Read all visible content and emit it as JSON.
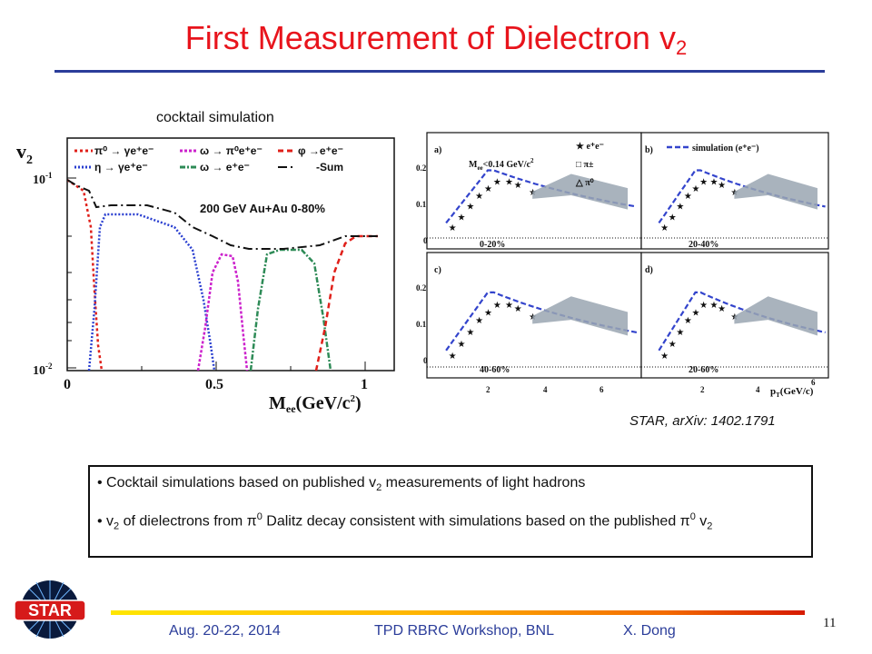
{
  "slide": {
    "title": "First Measurement of Dielectron v",
    "title_sub": "2",
    "cocktail_label": "cocktail simulation",
    "reference": "STAR, arXiv: 1402.1791",
    "bullets": [
      {
        "a": "Cocktail simulations based on published v",
        "sub1": "2",
        "b": " measurements of light hadrons"
      },
      {
        "a": "v",
        "sub1": "2",
        "b": " of dielectrons from ",
        "pi": "π",
        "sup": "0",
        "c": " Dalitz decay consistent with simulations based on the published ",
        "pi2": "π",
        "sup2": "0",
        "d": " v",
        "sub2": "2"
      }
    ],
    "footer": {
      "date": "Aug. 20-22, 2014",
      "event": "TPD RBRC Workshop, BNL",
      "author": "X. Dong",
      "page": "11"
    },
    "logo_text": "STAR"
  },
  "left_plot": {
    "ylabel": "v",
    "ylabel_sub": "2",
    "xlabel": "M",
    "xlabel_sub": "ee",
    "xlabel_rest": "(GeV/c",
    "xlabel_sup": "2",
    "xlabel_end": ")",
    "annotation": "200 GeV Au+Au 0-80%",
    "ytick_hi": "10",
    "ytick_hi_sup": "-1",
    "ytick_lo": "10",
    "ytick_lo_sup": "-2",
    "xticks": [
      "0",
      "0.5",
      "1"
    ],
    "legend": [
      {
        "text": "π⁰ → γe⁺e⁻",
        "color": "#e0201a"
      },
      {
        "text": "ω → π⁰e⁺e⁻",
        "color": "#cc22cc"
      },
      {
        "text": "φ →e⁺e⁻",
        "color": "#e0201a"
      },
      {
        "text": "η → γe⁺e⁻",
        "color": "#2a3fd0"
      },
      {
        "text": "ω → e⁺e⁻",
        "color": "#2e8b57"
      },
      {
        "text": "-Sum",
        "color": "#111111"
      }
    ]
  },
  "right_plot": {
    "panels": [
      {
        "id": "a)",
        "centrality": "0-20%"
      },
      {
        "id": "b)",
        "centrality": "20-40%"
      },
      {
        "id": "c)",
        "centrality": "40-60%"
      },
      {
        "id": "d)",
        "centrality": "20-60%"
      }
    ],
    "cut_label": "M",
    "cut_sub": "ee",
    "cut_rest": "<0.14 GeV/c",
    "cut_sup": "2",
    "legend": [
      "e⁺e⁻",
      "π±",
      "π⁰"
    ],
    "sim_label": "simulation (e⁺e⁻)",
    "yticks": [
      "0",
      "0.1",
      "0.2"
    ],
    "xticks": [
      "2",
      "4",
      "6"
    ],
    "xlabel": "p",
    "xlabel_sub": "T",
    "xlabel_rest": "(GeV/c)"
  },
  "colors": {
    "title": "#e8141c",
    "rule": "#2b3d9a",
    "sim": "#3344cc",
    "band": "#9aa6b2"
  }
}
